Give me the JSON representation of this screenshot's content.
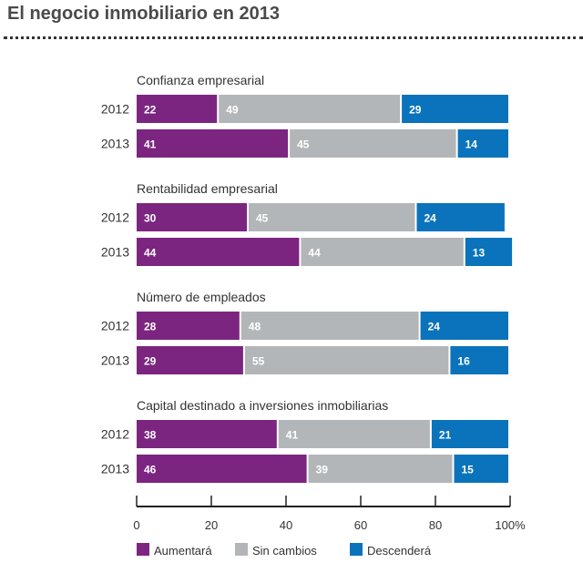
{
  "title": "El negocio inmobiliario en 2013",
  "colors": {
    "aumentara": "#7b2580",
    "sin_cambios": "#b3b6b8",
    "descendera": "#0a73bb"
  },
  "chart_data": {
    "type": "bar",
    "orientation": "horizontal",
    "stacked": true,
    "xlim": [
      0,
      100
    ],
    "ticks": [
      "0",
      "20",
      "40",
      "60",
      "80",
      "100%"
    ],
    "legend": [
      "Aumentará",
      "Sin cambios",
      "Descenderá"
    ],
    "legend_position": "bottom",
    "groups": [
      {
        "label": "Confianza empresarial",
        "rows": [
          {
            "year": "2012",
            "values": [
              22,
              49,
              29
            ]
          },
          {
            "year": "2013",
            "values": [
              41,
              45,
              14
            ]
          }
        ]
      },
      {
        "label": "Rentabilidad empresarial",
        "rows": [
          {
            "year": "2012",
            "values": [
              30,
              45,
              24
            ]
          },
          {
            "year": "2013",
            "values": [
              44,
              44,
              13
            ]
          }
        ]
      },
      {
        "label": "Número de empleados",
        "rows": [
          {
            "year": "2012",
            "values": [
              28,
              48,
              24
            ]
          },
          {
            "year": "2013",
            "values": [
              29,
              55,
              16
            ]
          }
        ]
      },
      {
        "label": "Capital destinado a inversiones inmobiliarias",
        "rows": [
          {
            "year": "2012",
            "values": [
              38,
              41,
              21
            ]
          },
          {
            "year": "2013",
            "values": [
              46,
              39,
              15
            ]
          }
        ]
      }
    ]
  }
}
